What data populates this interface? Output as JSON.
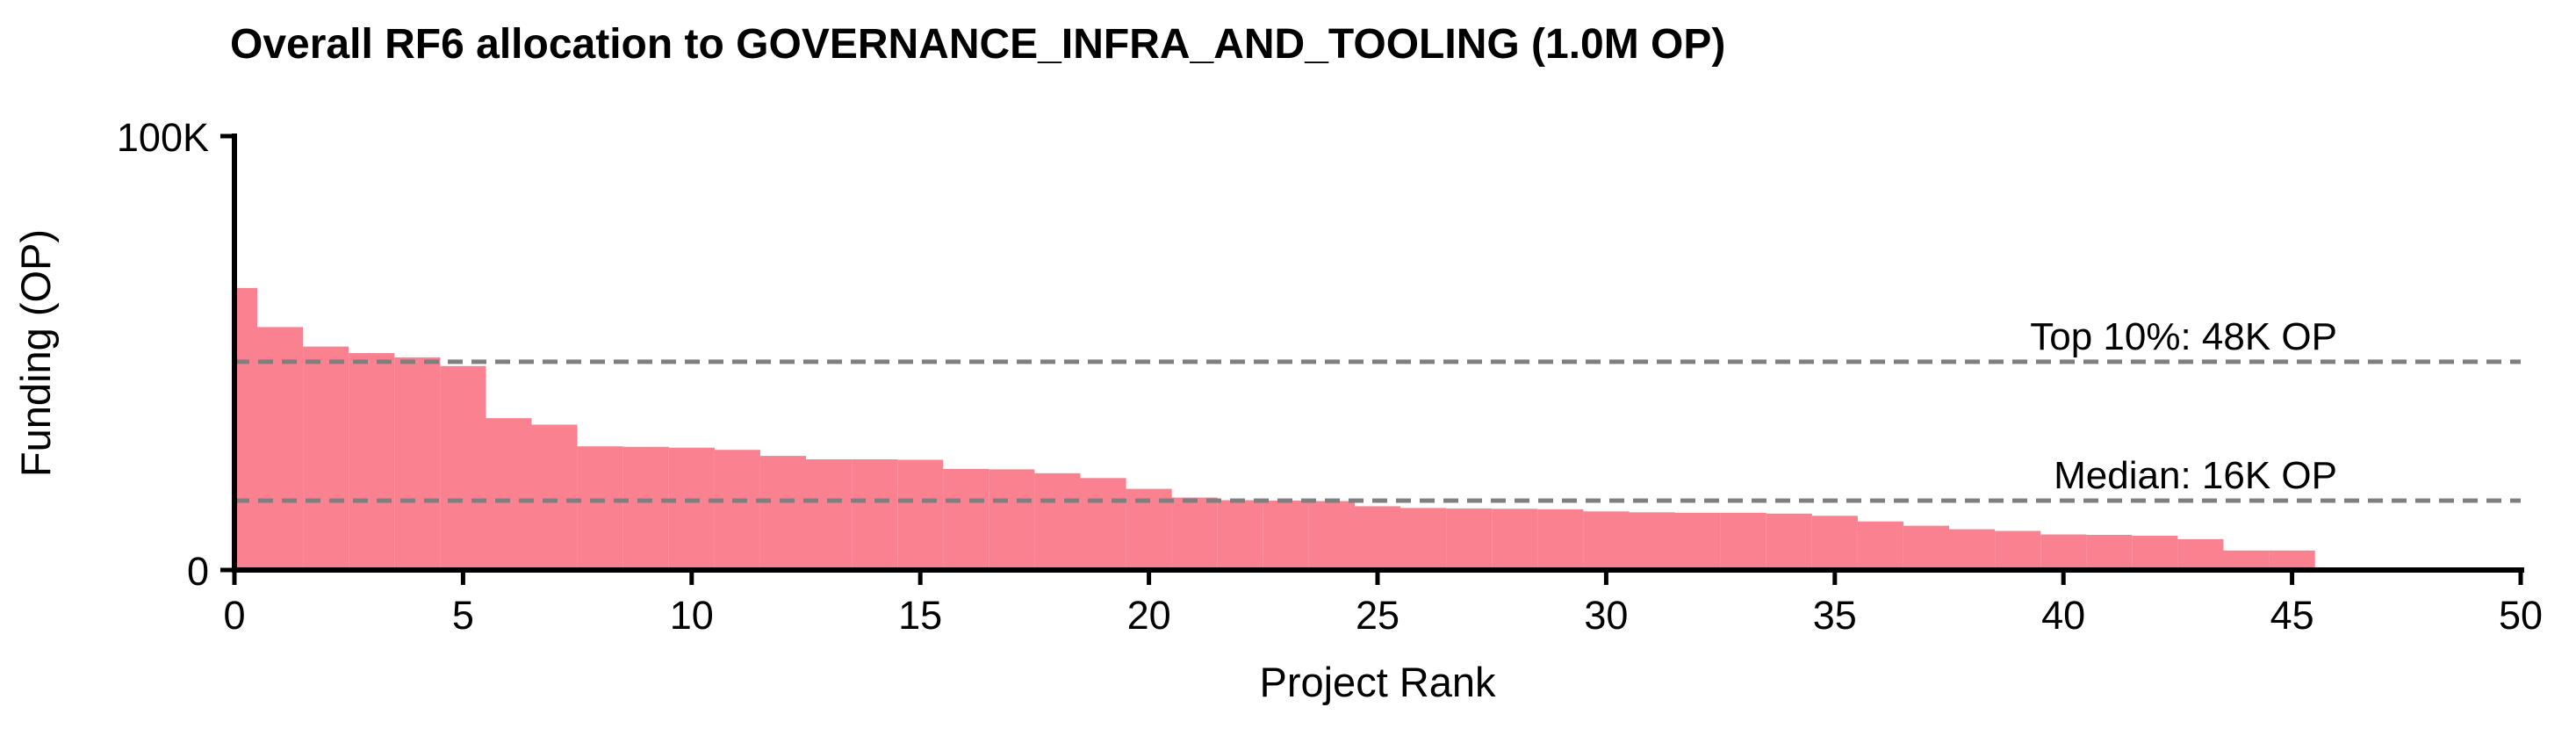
{
  "chart_data": {
    "type": "bar",
    "title": "Overall RF6 allocation to GOVERNANCE_INFRA_AND_TOOLING (1.0M OP)",
    "xlabel": "Project Rank",
    "ylabel": "Funding (OP)",
    "xlim": [
      0,
      50
    ],
    "ylim": [
      0,
      100000
    ],
    "grid": false,
    "legend_position": "none",
    "bar_width": 1,
    "x": [
      0,
      1,
      2,
      3,
      4,
      5,
      6,
      7,
      8,
      9,
      10,
      11,
      12,
      13,
      14,
      15,
      16,
      17,
      18,
      19,
      20,
      21,
      22,
      23,
      24,
      25,
      26,
      27,
      28,
      29,
      30,
      31,
      32,
      33,
      34,
      35,
      36,
      37,
      38,
      39,
      40,
      41,
      42,
      43,
      44,
      45
    ],
    "values": [
      65000,
      56000,
      51500,
      50000,
      49000,
      47000,
      35000,
      33500,
      28500,
      28400,
      28200,
      27700,
      26300,
      25500,
      25500,
      25400,
      23300,
      23200,
      22300,
      21200,
      18700,
      16700,
      16100,
      16000,
      15900,
      14700,
      14300,
      14200,
      14100,
      14000,
      13500,
      13300,
      13200,
      13200,
      13000,
      12500,
      11200,
      10200,
      9400,
      9000,
      8200,
      8100,
      7900,
      7100,
      4500,
      4500
    ],
    "x_ticks": [
      {
        "value": 0,
        "label": "0"
      },
      {
        "value": 5,
        "label": "5"
      },
      {
        "value": 10,
        "label": "10"
      },
      {
        "value": 15,
        "label": "15"
      },
      {
        "value": 20,
        "label": "20"
      },
      {
        "value": 25,
        "label": "25"
      },
      {
        "value": 30,
        "label": "30"
      },
      {
        "value": 35,
        "label": "35"
      },
      {
        "value": 40,
        "label": "40"
      },
      {
        "value": 45,
        "label": "45"
      },
      {
        "value": 50,
        "label": "50"
      }
    ],
    "y_ticks": [
      {
        "value": 0,
        "label": "0"
      },
      {
        "value": 100000,
        "label": "100K"
      }
    ],
    "reference_lines": [
      {
        "id": "top10",
        "label": "Top 10%: 48K OP",
        "value": 48000
      },
      {
        "id": "median",
        "label": "Median: 16K OP",
        "value": 16000
      }
    ],
    "colors": {
      "bar": "#FA8190",
      "reference_line": "#7F7F7F",
      "axis": "#000000",
      "text": "#000000",
      "background": "#FFFFFF"
    }
  }
}
